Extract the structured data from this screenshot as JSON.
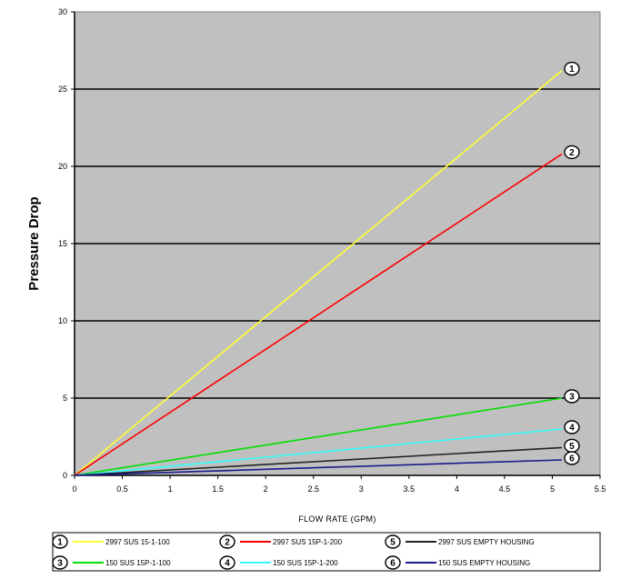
{
  "chart_data": {
    "type": "line",
    "title": "",
    "xlabel": "FLOW RATE (GPM)",
    "ylabel": "Pressure Drop",
    "xlim": [
      0,
      5.5
    ],
    "ylim": [
      0,
      30
    ],
    "x_ticks": [
      "0",
      "0.5",
      "1",
      "1.5",
      "2",
      "2.5",
      "3",
      "3.5",
      "4",
      "4.5",
      "5",
      "5.5"
    ],
    "y_ticks": [
      "0",
      "5",
      "10",
      "15",
      "20",
      "25",
      "30"
    ],
    "grid": "horizontal",
    "background": "#c0c0c0",
    "series": [
      {
        "id": "1",
        "name": "2997 SUS 15-1-100",
        "color": "#ffff33",
        "x": [
          0,
          5.1
        ],
        "y": [
          0,
          26.2
        ]
      },
      {
        "id": "2",
        "name": "2997 SUS 15P-1-200",
        "color": "#ff0000",
        "x": [
          0,
          5.1
        ],
        "y": [
          0,
          20.8
        ]
      },
      {
        "id": "3",
        "name": "150 SUS 15P-1-100",
        "color": "#00e000",
        "x": [
          0,
          5.1
        ],
        "y": [
          0,
          5.0
        ]
      },
      {
        "id": "4",
        "name": "150 SUS 15P-1-200",
        "color": "#33ffff",
        "x": [
          0,
          5.1
        ],
        "y": [
          0,
          3.0
        ]
      },
      {
        "id": "5",
        "name": "2997 SUS EMPTY HOUSING",
        "color": "#222222",
        "x": [
          0,
          5.1
        ],
        "y": [
          0,
          1.8
        ]
      },
      {
        "id": "6",
        "name": "150 SUS EMPTY HOUSING",
        "color": "#1a1a8c",
        "x": [
          0,
          5.1
        ],
        "y": [
          0,
          1.0
        ]
      }
    ]
  }
}
